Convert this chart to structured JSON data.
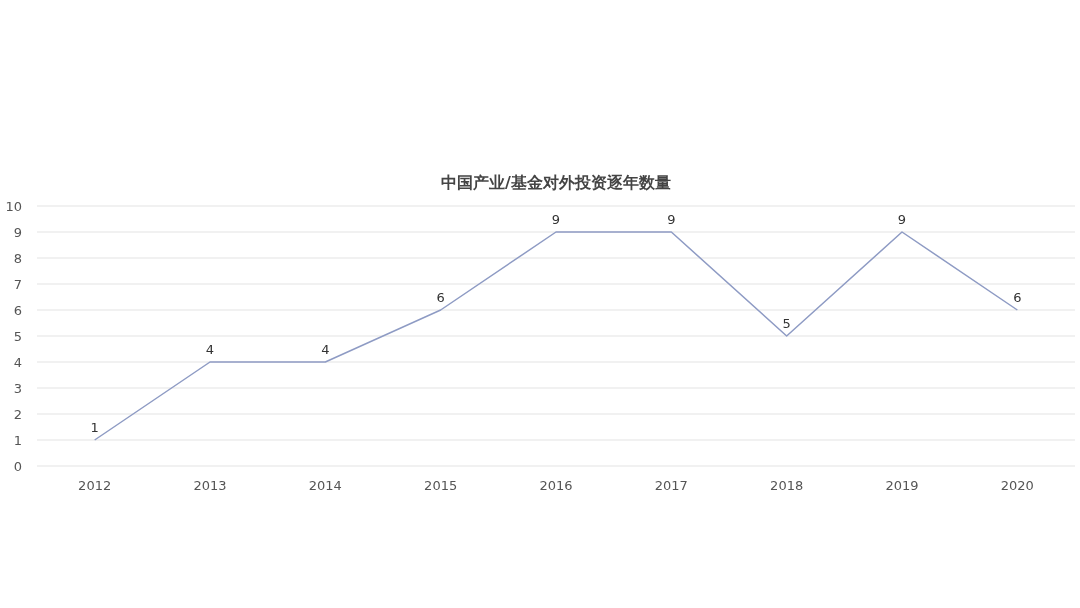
{
  "chart_data": {
    "type": "line",
    "title": "中国产业/基金对外投资逐年数量",
    "categories": [
      "2012",
      "2013",
      "2014",
      "2015",
      "2016",
      "2017",
      "2018",
      "2019",
      "2020"
    ],
    "values": [
      1,
      4,
      4,
      6,
      9,
      9,
      5,
      9,
      6
    ],
    "color": "#8e9bc4",
    "ylim": [
      0,
      10
    ],
    "yticks": [
      0,
      1,
      2,
      3,
      4,
      5,
      6,
      7,
      8,
      9,
      10
    ],
    "grid": "y",
    "data_labels": true,
    "marker": "none"
  }
}
